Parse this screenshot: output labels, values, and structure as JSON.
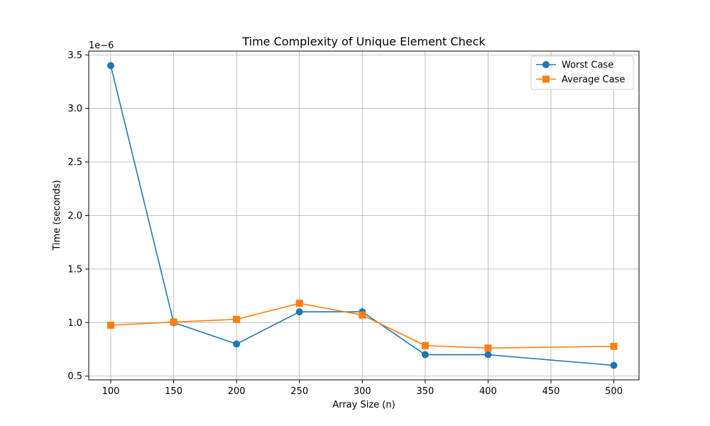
{
  "chart_data": {
    "type": "line",
    "title": "Time Complexity of Unique Element Check",
    "xlabel": "Array Size (n)",
    "ylabel": "Time (seconds)",
    "y_offset_text": "1e−6",
    "xlim": [
      82.5,
      520
    ],
    "ylim": [
      0.465,
      3.535
    ],
    "y_scale_factor": 1e-06,
    "x_ticks": [
      100,
      150,
      200,
      250,
      300,
      350,
      400,
      450,
      500
    ],
    "x_tick_labels": [
      "100",
      "150",
      "200",
      "250",
      "300",
      "350",
      "400",
      "450",
      "500"
    ],
    "y_ticks": [
      0.5,
      1.0,
      1.5,
      2.0,
      2.5,
      3.0,
      3.5
    ],
    "y_tick_labels": [
      "0.5",
      "1.0",
      "1.5",
      "2.0",
      "2.5",
      "3.0",
      "3.5"
    ],
    "grid": true,
    "legend_position": "top-right",
    "series": [
      {
        "name": "Worst Case",
        "color": "#1f77b4",
        "marker": "circle",
        "x": [
          100,
          150,
          200,
          250,
          300,
          350,
          400,
          500
        ],
        "y": [
          3.4,
          1.0,
          0.8,
          1.1,
          1.1,
          0.7,
          0.7,
          0.6
        ]
      },
      {
        "name": "Average Case",
        "color": "#ff7f0e",
        "marker": "square",
        "x": [
          100,
          150,
          200,
          250,
          300,
          350,
          400,
          500
        ],
        "y": [
          0.975,
          1.005,
          1.03,
          1.18,
          1.07,
          0.785,
          0.762,
          0.778
        ]
      }
    ]
  }
}
